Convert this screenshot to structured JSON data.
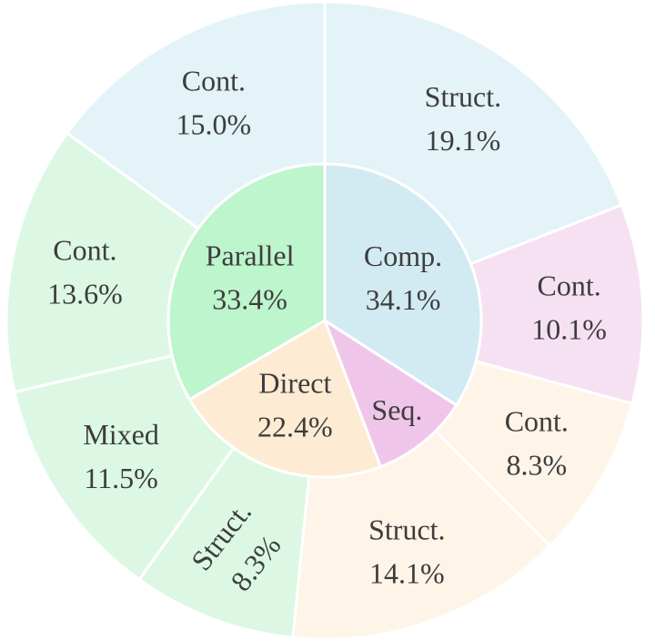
{
  "chart_data": {
    "type": "sunburst",
    "title": "",
    "inner": [
      {
        "name": "Comp.",
        "label": "Comp.",
        "value": 34.1,
        "value_label": "34.1%",
        "color": "#d2ebf2"
      },
      {
        "name": "Seq.",
        "label": "Seq.",
        "value": 10.1,
        "value_label": "",
        "color": "#efc6ea"
      },
      {
        "name": "Direct",
        "label": "Direct",
        "value": 22.4,
        "value_label": "22.4%",
        "color": "#fdebd4"
      },
      {
        "name": "Parallel",
        "label": "Parallel",
        "value": 33.4,
        "value_label": "33.4%",
        "color": "#bdf5cc"
      }
    ],
    "outer": [
      {
        "parent": "Comp.",
        "label": "Struct.",
        "value": 19.1,
        "value_label": "19.1%",
        "color": "#e3f3f7"
      },
      {
        "parent": "Seq.",
        "label": "Cont.",
        "value": 10.1,
        "value_label": "10.1%",
        "color": "#f6e1f3"
      },
      {
        "parent": "Direct",
        "label": "Cont.",
        "value": 8.3,
        "value_label": "8.3%",
        "color": "#fef4e8"
      },
      {
        "parent": "Direct",
        "label": "Struct.",
        "value": 14.1,
        "value_label": "14.1%",
        "color": "#fef4e8"
      },
      {
        "parent": "Parallel",
        "label": "Struct.",
        "value": 8.3,
        "value_label": "8.3%",
        "color": "#dcf8e4"
      },
      {
        "parent": "Parallel",
        "label": "Mixed",
        "value": 11.5,
        "value_label": "11.5%",
        "color": "#dcf8e4"
      },
      {
        "parent": "Parallel",
        "label": "Cont.",
        "value": 13.6,
        "value_label": "13.6%",
        "color": "#dcf8e4"
      },
      {
        "parent": "Comp.",
        "label": "Cont.",
        "value": 15.0,
        "value_label": "15.0%",
        "color": "#e3f3f7"
      }
    ],
    "start_angle_deg": 90,
    "direction": "clockwise"
  }
}
